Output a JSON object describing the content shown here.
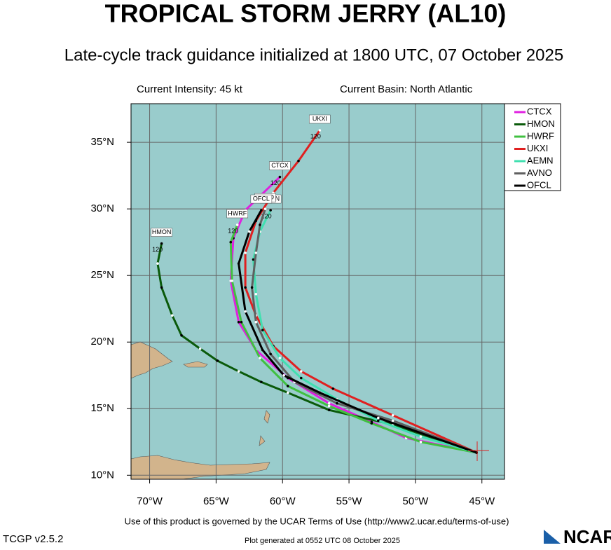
{
  "chart_data": {
    "type": "line",
    "title": "TROPICAL STORM JERRY (AL10)",
    "subtitle": "Late-cycle track guidance initialized at 1800 UTC, 07 October 2025",
    "intensity": "Current Intensity: 45 kt",
    "basin": "Current Basin: North Atlantic",
    "terms": "Use of this product is governed by the UCAR Terms of Use (http://www2.ucar.edu/terms-of-use)",
    "version": "TCGP v2.5.2",
    "generated": "Plot generated at 0552 UTC   08 October 2025",
    "logo": "NCAR",
    "xlim": [
      -71.4,
      -43.3
    ],
    "ylim": [
      9.7,
      37.9
    ],
    "xticks": [
      {
        "value": -70,
        "label": "70°W"
      },
      {
        "value": -65,
        "label": "65°W"
      },
      {
        "value": -60,
        "label": "60°W"
      },
      {
        "value": -55,
        "label": "55°W"
      },
      {
        "value": -50,
        "label": "50°W"
      },
      {
        "value": -45,
        "label": "45°W"
      }
    ],
    "yticks": [
      {
        "value": 10,
        "label": "10°N"
      },
      {
        "value": 15,
        "label": "15°N"
      },
      {
        "value": 20,
        "label": "20°N"
      },
      {
        "value": 25,
        "label": "25°N"
      },
      {
        "value": 30,
        "label": "30°N"
      },
      {
        "value": 35,
        "label": "35°N"
      }
    ],
    "grid": true,
    "series": [
      {
        "name": "CTCX",
        "color": "#e020e0",
        "end_hour": 120,
        "x": [
          -45.4,
          -50.7,
          -53.3,
          -56.5,
          -59.6,
          -62.0,
          -63.3,
          -63.9,
          -63.7,
          -62.8,
          -60.2
        ],
        "values": [
          11.7,
          12.8,
          14.0,
          15.4,
          17.3,
          19.4,
          21.5,
          24.6,
          27.8,
          29.9,
          32.4
        ]
      },
      {
        "name": "HMON",
        "color": "#0a5a0a",
        "end_hour": 120,
        "x": [
          -45.4,
          -51.7,
          -56.5,
          -59.6,
          -61.6,
          -63.3,
          -64.9,
          -66.2,
          -67.6,
          -68.3,
          -69.1,
          -69.4,
          -69.1
        ],
        "values": [
          11.7,
          13.8,
          14.9,
          16.2,
          17.0,
          17.8,
          18.6,
          19.5,
          20.5,
          22.0,
          24.1,
          25.9,
          27.4
        ]
      },
      {
        "name": "HWRF",
        "color": "#40c040",
        "end_hour": 120,
        "x": [
          -45.4,
          -49.6,
          -53.3,
          -56.5,
          -59.6,
          -61.7,
          -63.1,
          -63.8,
          -63.9,
          -63.4
        ],
        "values": [
          11.7,
          12.5,
          13.9,
          15.2,
          16.7,
          18.8,
          21.5,
          24.6,
          27.5,
          28.8
        ]
      },
      {
        "name": "UKXI",
        "color": "#e02020",
        "end_hour": 120,
        "x": [
          -45.4,
          -51.7,
          -56.2,
          -58.6,
          -60.7,
          -62.0,
          -62.8,
          -62.8,
          -62.0,
          -60.7,
          -58.8,
          -57.2
        ],
        "values": [
          11.7,
          14.5,
          16.5,
          17.8,
          19.7,
          22.0,
          24.1,
          26.7,
          29.1,
          31.2,
          33.6,
          35.9
        ]
      },
      {
        "name": "AEMN",
        "color": "#40e0b0",
        "end_hour": 120,
        "x": [
          -45.4,
          -49.6,
          -52.8,
          -55.9,
          -58.6,
          -60.2,
          -61.5,
          -62.0,
          -62.2,
          -61.7,
          -60.9
        ],
        "values": [
          11.7,
          12.9,
          14.1,
          15.7,
          17.3,
          18.8,
          20.9,
          23.6,
          26.2,
          28.3,
          29.9
        ]
      },
      {
        "name": "AVNO",
        "color": "#606060",
        "x": [
          -45.4,
          -51.7,
          -55.9,
          -59.1,
          -60.9,
          -62.0,
          -62.3,
          -62.0,
          -61.7,
          -61.3
        ],
        "values": [
          11.7,
          14.1,
          15.4,
          17.0,
          19.1,
          21.5,
          24.1,
          26.7,
          28.8,
          30.0
        ]
      },
      {
        "name": "OFCL",
        "color": "#000000",
        "x": [
          -45.4,
          -52.8,
          -57.2,
          -59.9,
          -61.5,
          -62.8,
          -63.3,
          -62.5,
          -61.6
        ],
        "values": [
          11.7,
          14.3,
          16.2,
          17.5,
          19.4,
          22.3,
          25.9,
          28.3,
          29.9
        ]
      }
    ]
  }
}
